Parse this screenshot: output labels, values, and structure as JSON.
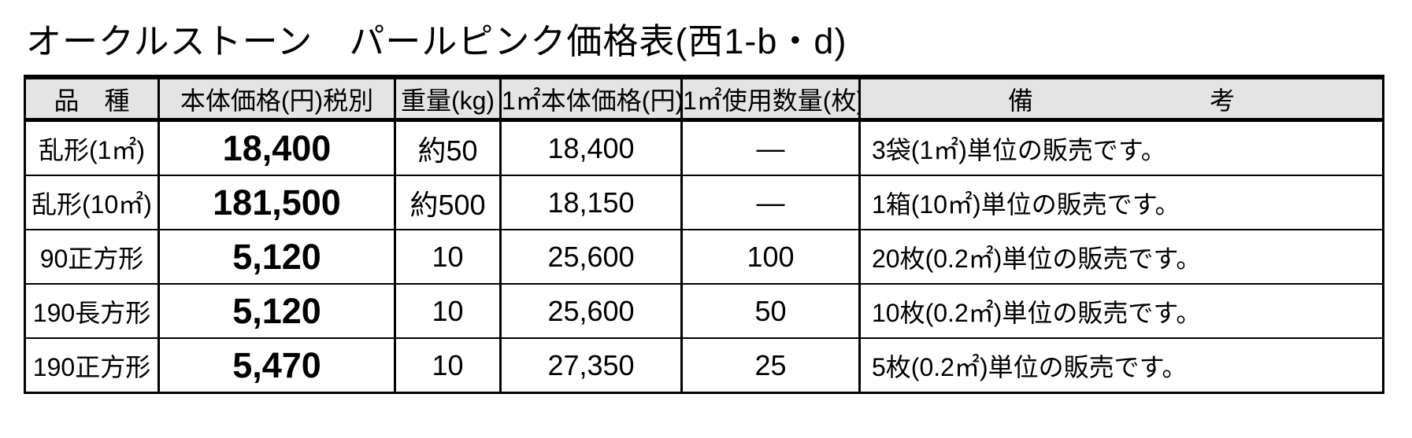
{
  "title": "オークルストーン　パールピンク価格表(西1-b・d)",
  "table": {
    "headers": [
      "品　種",
      "本体価格(円)税別",
      "重量(kg)",
      "1㎡本体価格(円)",
      "1㎡使用数量(枚)",
      "備　　　　　　　考"
    ],
    "rows": [
      {
        "kind": "乱形(1㎡)",
        "price": "18,400",
        "weight": "約50",
        "price_per_m2": "18,400",
        "qty_per_m2": "—",
        "note": "3袋(1㎡)単位の販売です。"
      },
      {
        "kind": "乱形(10㎡)",
        "price": "181,500",
        "weight": "約500",
        "price_per_m2": "18,150",
        "qty_per_m2": "—",
        "note": "1箱(10㎡)単位の販売です。"
      },
      {
        "kind": "90正方形",
        "price": "5,120",
        "weight": "10",
        "price_per_m2": "25,600",
        "qty_per_m2": "100",
        "note": "20枚(0.2㎡)単位の販売です。"
      },
      {
        "kind": "190長方形",
        "price": "5,120",
        "weight": "10",
        "price_per_m2": "25,600",
        "qty_per_m2": "50",
        "note": "10枚(0.2㎡)単位の販売です。"
      },
      {
        "kind": "190正方形",
        "price": "5,470",
        "weight": "10",
        "price_per_m2": "27,350",
        "qty_per_m2": "25",
        "note": "5枚(0.2㎡)単位の販売です。"
      }
    ]
  },
  "colors": {
    "header_bg": "#e4e4e4",
    "border": "#000000",
    "page_bg": "#ffffff"
  }
}
